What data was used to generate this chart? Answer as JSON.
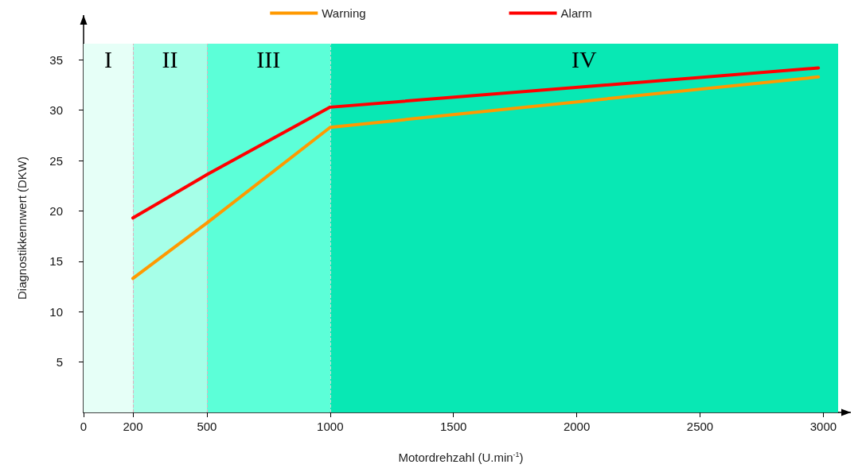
{
  "chart_data": {
    "type": "line",
    "xlabel": "Motordrehzahl (U.min$^{-1}$)",
    "ylabel": "Diagnostikkennwert (DKW)",
    "series": [
      {
        "name": "Warning",
        "color": "#ff9900",
        "x": [
          200,
          500,
          1000,
          2980
        ],
        "values": [
          13.3,
          18.8,
          28.3,
          33.3
        ]
      },
      {
        "name": "Alarm",
        "color": "#ff0000",
        "x": [
          200,
          500,
          1000,
          2980
        ],
        "values": [
          19.3,
          23.6,
          30.3,
          34.2
        ]
      }
    ],
    "xlim": [
      0,
      3060
    ],
    "xticks": [
      0,
      200,
      500,
      1000,
      1500,
      2000,
      2500,
      3000
    ],
    "ylim": [
      0,
      36.6
    ],
    "yticks": [
      5,
      10,
      15,
      20,
      25,
      30,
      35
    ],
    "bands": [
      {
        "axis": "x",
        "from": 0,
        "to": 200,
        "label": "I",
        "color": "#e6fff7"
      },
      {
        "axis": "x",
        "from": 200,
        "to": 500,
        "label": "II",
        "color": "#a6ffe8"
      },
      {
        "axis": "x",
        "from": 500,
        "to": 1000,
        "label": "III",
        "color": "#5cffd8"
      },
      {
        "axis": "x",
        "from": 1000,
        "to": 3060,
        "label": "IV",
        "color": "#08e8b4"
      }
    ],
    "ref_lines": [
      {
        "axis": "x",
        "value": 200,
        "color": "#e0b0c0",
        "line_style": "dashed"
      },
      {
        "axis": "x",
        "value": 500,
        "color": "#e0b0c0",
        "line_style": "dashed"
      },
      {
        "axis": "x",
        "value": 1000,
        "color": "#c0d8d0",
        "line_style": "dashed"
      }
    ],
    "legend": "top",
    "grid": false,
    "marker": "none",
    "line_style": "solid"
  }
}
